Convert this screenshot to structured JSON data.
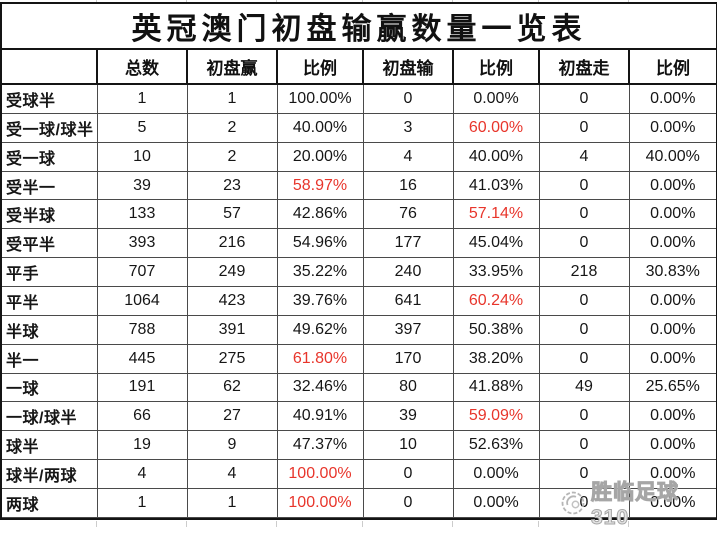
{
  "title": "英冠澳门初盘输赢数量一览表",
  "watermark": {
    "text": "胜临足球310",
    "icon": "round-stamp-logo"
  },
  "colors": {
    "highlight_red": "#e8352b",
    "text": "#161616",
    "grid_line": "#4a4a4a",
    "outer_border": "#141414",
    "watermark_gray": "#b3b3b3"
  },
  "chart_data": {
    "type": "table",
    "title": "英冠澳门初盘输赢数量一览表",
    "columns": [
      "",
      "总数",
      "初盘赢",
      "比例",
      "初盘输",
      "比例",
      "初盘走",
      "比例"
    ],
    "rows": [
      [
        "受球半",
        "1",
        "1",
        "100.00%",
        "0",
        "0.00%",
        "0",
        "0.00%"
      ],
      [
        "受一球/球半",
        "5",
        "2",
        "40.00%",
        "3",
        "60.00%",
        "0",
        "0.00%"
      ],
      [
        "受一球",
        "10",
        "2",
        "20.00%",
        "4",
        "40.00%",
        "4",
        "40.00%"
      ],
      [
        "受半一",
        "39",
        "23",
        "58.97%",
        "16",
        "41.03%",
        "0",
        "0.00%"
      ],
      [
        "受半球",
        "133",
        "57",
        "42.86%",
        "76",
        "57.14%",
        "0",
        "0.00%"
      ],
      [
        "受平半",
        "393",
        "216",
        "54.96%",
        "177",
        "45.04%",
        "0",
        "0.00%"
      ],
      [
        "平手",
        "707",
        "249",
        "35.22%",
        "240",
        "33.95%",
        "218",
        "30.83%"
      ],
      [
        "平半",
        "1064",
        "423",
        "39.76%",
        "641",
        "60.24%",
        "0",
        "0.00%"
      ],
      [
        "半球",
        "788",
        "391",
        "49.62%",
        "397",
        "50.38%",
        "0",
        "0.00%"
      ],
      [
        "半一",
        "445",
        "275",
        "61.80%",
        "170",
        "38.20%",
        "0",
        "0.00%"
      ],
      [
        "一球",
        "191",
        "62",
        "32.46%",
        "80",
        "41.88%",
        "49",
        "25.65%"
      ],
      [
        "一球/球半",
        "66",
        "27",
        "40.91%",
        "39",
        "59.09%",
        "0",
        "0.00%"
      ],
      [
        "球半",
        "19",
        "9",
        "47.37%",
        "10",
        "52.63%",
        "0",
        "0.00%"
      ],
      [
        "球半/两球",
        "4",
        "4",
        "100.00%",
        "0",
        "0.00%",
        "0",
        "0.00%"
      ],
      [
        "两球",
        "1",
        "1",
        "100.00%",
        "0",
        "0.00%",
        "0",
        "0.00%"
      ],
      [
        "",
        "",
        "",
        "",
        "",
        "",
        "",
        ""
      ]
    ],
    "highlight_cells": [
      [
        1,
        5
      ],
      [
        3,
        3
      ],
      [
        4,
        5
      ],
      [
        7,
        5
      ],
      [
        9,
        3
      ],
      [
        11,
        5
      ],
      [
        13,
        3
      ],
      [
        14,
        3
      ]
    ],
    "legend_note": "red = highlighted percentage values",
    "grid": true
  }
}
